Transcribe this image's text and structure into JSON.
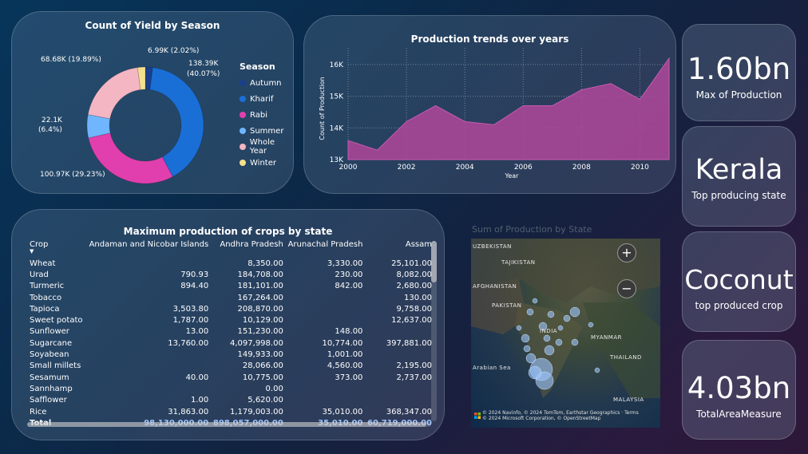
{
  "donut": {
    "title": "Count of Yield by Season",
    "legend_title": "Season",
    "segments": [
      {
        "name": "Autumn",
        "value": 6.99,
        "label": "6.99K (2.02%)",
        "color": "#1a3f8c"
      },
      {
        "name": "Kharif",
        "value": 138.39,
        "label": "138.39K (40.07%)",
        "color": "#1a6fd6"
      },
      {
        "name": "Rabi",
        "value": 100.97,
        "label": "100.97K (29.23%)",
        "color": "#e23fae"
      },
      {
        "name": "Summer",
        "value": 22.1,
        "label": "22.1K (6.4%)",
        "color": "#6fb6ff"
      },
      {
        "name": "Whole Year",
        "value": 68.68,
        "label": "68.68K (19.89%)",
        "color": "#f4b6c2"
      },
      {
        "name": "Winter",
        "value": 7.3,
        "label": "",
        "color": "#f4e08c"
      }
    ],
    "labels": {
      "autumn": "6.99K (2.02%)",
      "kharif_1": "138.39K",
      "kharif_2": "(40.07%)",
      "rabi": "100.97K (29.23%)",
      "summer_1": "22.1K",
      "summer_2": "(6.4%)",
      "whole_year": "68.68K (19.89%)"
    }
  },
  "area_chart": {
    "title": "Production trends over years",
    "xlabel": "Year",
    "ylabel": "Count of Production"
  },
  "chart_data": {
    "type": "area",
    "title": "Production trends over years",
    "xlabel": "Year",
    "ylabel": "Count of Production",
    "x": [
      2000,
      2001,
      2002,
      2003,
      2004,
      2005,
      2006,
      2007,
      2008,
      2009,
      2010,
      2011
    ],
    "values": [
      13.6,
      13.3,
      14.2,
      14.7,
      14.2,
      14.1,
      14.7,
      14.7,
      15.2,
      15.4,
      14.9,
      16.2
    ],
    "x_ticks": [
      "2000",
      "2002",
      "2004",
      "2006",
      "2008",
      "2010"
    ],
    "y_ticks": [
      "13K",
      "14K",
      "15K",
      "16K"
    ],
    "xlim": [
      2000,
      2011
    ],
    "ylim": [
      13,
      16.4
    ],
    "color": "#b0479a",
    "grid": true
  },
  "kpis": [
    {
      "value": "1.60bn",
      "label": "Max of Production"
    },
    {
      "value": "Kerala",
      "label": "Top producing state"
    },
    {
      "value": "Coconut",
      "label": "top produced crop"
    },
    {
      "value": "4.03bn",
      "label": "TotalAreaMeasure"
    }
  ],
  "table": {
    "title": "Maximum production of crops by state",
    "columns": [
      "Crop",
      "Andaman and Nicobar Islands",
      "Andhra Pradesh",
      "Arunachal Pradesh",
      "Assam"
    ],
    "rows": [
      [
        "Wheat",
        "",
        "8,350.00",
        "3,330.00",
        "25,101.00"
      ],
      [
        "Urad",
        "790.93",
        "184,708.00",
        "230.00",
        "8,082.00"
      ],
      [
        "Turmeric",
        "894.40",
        "181,101.00",
        "842.00",
        "2,680.00"
      ],
      [
        "Tobacco",
        "",
        "167,264.00",
        "",
        "130.00"
      ],
      [
        "Tapioca",
        "3,503.80",
        "208,870.00",
        "",
        "9,758.00"
      ],
      [
        "Sweet potato",
        "1,787.00",
        "10,129.00",
        "",
        "12,637.00"
      ],
      [
        "Sunflower",
        "13.00",
        "151,230.00",
        "148.00",
        ""
      ],
      [
        "Sugarcane",
        "13,760.00",
        "4,097,998.00",
        "10,774.00",
        "397,881.00"
      ],
      [
        "Soyabean",
        "",
        "149,933.00",
        "1,001.00",
        ""
      ],
      [
        "Small millets",
        "",
        "28,066.00",
        "4,560.00",
        "2,195.00"
      ],
      [
        "Sesamum",
        "40.00",
        "10,775.00",
        "373.00",
        "2,737.00"
      ],
      [
        "Sannhamp",
        "",
        "0.00",
        "",
        ""
      ],
      [
        "Safflower",
        "1.00",
        "5,620.00",
        "",
        ""
      ],
      [
        "Rice",
        "31,863.00",
        "1,179,003.00",
        "35,010.00",
        "368,347.00"
      ]
    ],
    "total": [
      "Total",
      "98,130,000.00",
      "898,057,000.00",
      "35,010.00",
      "60,719,000.00"
    ]
  },
  "map": {
    "title": "Sum of Production by State",
    "labels": {
      "uzbekistan": "UZBEKISTAN",
      "tajikistan": "TAJIKISTAN",
      "afghanistan": "AFGHANISTAN",
      "pakistan": "PAKISTAN",
      "india": "INDIA",
      "myanmar": "MYANMAR",
      "thailand": "THAILAND",
      "arabian_sea": "Arabian Sea",
      "malaysia": "MALAYSIA"
    },
    "zoom_in": "+",
    "zoom_out": "−",
    "attribution_1": "© 2024 Navinfo, © 2024 TomTom, Earthstar Geographics · Terms",
    "attribution_2": "© 2024 Microsoft Corporation, © OpenStreetMap"
  }
}
